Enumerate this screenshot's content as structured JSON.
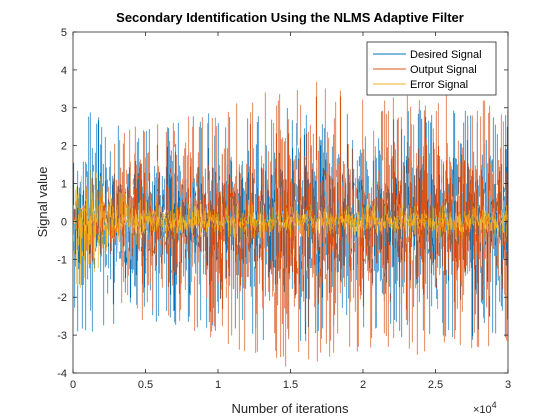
{
  "chart_data": {
    "type": "line",
    "title": "Secondary Identification Using the NLMS Adaptive Filter",
    "xlabel": "Number of iterations",
    "ylabel": "Signal value",
    "xlim": [
      0,
      30000
    ],
    "ylim": [
      -4,
      5
    ],
    "x_tick_values": [
      0,
      5000,
      10000,
      15000,
      20000,
      25000,
      30000
    ],
    "x_tick_labels": [
      "0",
      "0.5",
      "1",
      "1.5",
      "2",
      "2.5",
      "3"
    ],
    "x_multiplier_base": "×10",
    "x_multiplier_exp": "4",
    "y_tick_values": [
      -4,
      -3,
      -2,
      -1,
      0,
      1,
      2,
      3,
      4,
      5
    ],
    "y_tick_labels": [
      "-4",
      "-3",
      "-2",
      "-1",
      "0",
      "1",
      "2",
      "3",
      "4",
      "5"
    ],
    "grid": false,
    "legend_position": "top-right",
    "series": [
      {
        "name": "Desired Signal",
        "color": "#0072BD",
        "envelope_x": [
          0,
          1000,
          2000,
          3000,
          4000,
          6000,
          10000,
          15000,
          20000,
          25000,
          30000
        ],
        "envelope_upper": [
          2.7,
          3.2,
          3.0,
          2.6,
          2.4,
          2.6,
          2.9,
          3.0,
          2.9,
          3.0,
          2.8
        ],
        "envelope_lower": [
          -3.4,
          -3.0,
          -3.2,
          -2.8,
          -2.5,
          -2.7,
          -2.9,
          -3.3,
          -3.0,
          -3.1,
          -3.2
        ]
      },
      {
        "name": "Output Signal",
        "color": "#D95319",
        "envelope_x": [
          0,
          1000,
          2000,
          3000,
          4000,
          6000,
          10000,
          15000,
          20000,
          25000,
          30000
        ],
        "envelope_upper": [
          0.3,
          1.0,
          1.6,
          2.2,
          2.5,
          2.7,
          3.0,
          3.9,
          3.3,
          3.4,
          3.1
        ],
        "envelope_lower": [
          -0.3,
          -1.0,
          -1.6,
          -2.2,
          -2.6,
          -2.8,
          -3.2,
          -3.9,
          -3.4,
          -3.6,
          -3.3
        ]
      },
      {
        "name": "Error Signal",
        "color": "#EDB120",
        "envelope_x": [
          0,
          1000,
          2000,
          3000,
          4000,
          5000,
          6000,
          10000,
          15000,
          20000,
          25000,
          30000
        ],
        "envelope_upper": [
          1.9,
          1.6,
          1.2,
          0.9,
          0.7,
          0.55,
          0.5,
          0.45,
          0.45,
          0.45,
          0.45,
          0.45
        ],
        "envelope_lower": [
          -1.9,
          -1.6,
          -1.2,
          -0.9,
          -0.7,
          -0.55,
          -0.5,
          -0.45,
          -0.45,
          -0.45,
          -0.45,
          -0.45
        ]
      }
    ]
  }
}
